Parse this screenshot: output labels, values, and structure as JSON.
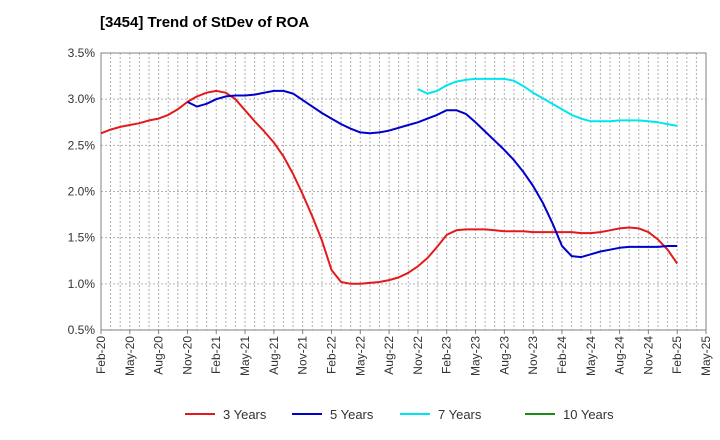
{
  "title": "[3454]  Trend of StDev of ROA",
  "chart_data": {
    "type": "line",
    "title": "[3454]  Trend of StDev of ROA",
    "xlabel": "",
    "ylabel": "",
    "x_tick_labels": [
      "Feb-20",
      "May-20",
      "Aug-20",
      "Nov-20",
      "Feb-21",
      "May-21",
      "Aug-21",
      "Nov-21",
      "Feb-22",
      "May-22",
      "Aug-22",
      "Nov-22",
      "Feb-23",
      "May-23",
      "Aug-23",
      "Nov-23",
      "Feb-24",
      "May-24",
      "Aug-24",
      "Nov-24",
      "Feb-25",
      "May-25"
    ],
    "y_tick_labels": [
      "0.5%",
      "1.0%",
      "1.5%",
      "2.0%",
      "2.5%",
      "3.0%",
      "3.5%"
    ],
    "ylim": [
      0.5,
      3.5
    ],
    "grid": true,
    "legend_position": "bottom",
    "series": [
      {
        "name": "3 Years",
        "color": "#e31a1c",
        "points": [
          [
            "Feb-20",
            2.63
          ],
          [
            "Mar-20",
            2.67
          ],
          [
            "Apr-20",
            2.7
          ],
          [
            "May-20",
            2.72
          ],
          [
            "Jun-20",
            2.74
          ],
          [
            "Jul-20",
            2.77
          ],
          [
            "Aug-20",
            2.79
          ],
          [
            "Sep-20",
            2.83
          ],
          [
            "Oct-20",
            2.89
          ],
          [
            "Nov-20",
            2.97
          ],
          [
            "Dec-20",
            3.03
          ],
          [
            "Jan-21",
            3.07
          ],
          [
            "Feb-21",
            3.09
          ],
          [
            "Mar-21",
            3.07
          ],
          [
            "Apr-21",
            3.0
          ],
          [
            "May-21",
            2.88
          ],
          [
            "Jun-21",
            2.76
          ],
          [
            "Jul-21",
            2.65
          ],
          [
            "Aug-21",
            2.53
          ],
          [
            "Sep-21",
            2.38
          ],
          [
            "Oct-21",
            2.19
          ],
          [
            "Nov-21",
            1.97
          ],
          [
            "Dec-21",
            1.73
          ],
          [
            "Jan-22",
            1.47
          ],
          [
            "Feb-22",
            1.15
          ],
          [
            "Mar-22",
            1.02
          ],
          [
            "Apr-22",
            1.0
          ],
          [
            "May-22",
            1.0
          ],
          [
            "Jun-22",
            1.01
          ],
          [
            "Jul-22",
            1.02
          ],
          [
            "Aug-22",
            1.04
          ],
          [
            "Sep-22",
            1.07
          ],
          [
            "Oct-22",
            1.12
          ],
          [
            "Nov-22",
            1.19
          ],
          [
            "Dec-22",
            1.28
          ],
          [
            "Jan-23",
            1.4
          ],
          [
            "Feb-23",
            1.53
          ],
          [
            "Mar-23",
            1.58
          ],
          [
            "Apr-23",
            1.59
          ],
          [
            "May-23",
            1.59
          ],
          [
            "Jun-23",
            1.59
          ],
          [
            "Jul-23",
            1.58
          ],
          [
            "Aug-23",
            1.57
          ],
          [
            "Sep-23",
            1.57
          ],
          [
            "Oct-23",
            1.57
          ],
          [
            "Nov-23",
            1.56
          ],
          [
            "Dec-23",
            1.56
          ],
          [
            "Jan-24",
            1.56
          ],
          [
            "Feb-24",
            1.56
          ],
          [
            "Mar-24",
            1.56
          ],
          [
            "Apr-24",
            1.55
          ],
          [
            "May-24",
            1.55
          ],
          [
            "Jun-24",
            1.56
          ],
          [
            "Jul-24",
            1.58
          ],
          [
            "Aug-24",
            1.6
          ],
          [
            "Sep-24",
            1.61
          ],
          [
            "Oct-24",
            1.6
          ],
          [
            "Nov-24",
            1.56
          ],
          [
            "Dec-24",
            1.48
          ],
          [
            "Jan-25",
            1.37
          ],
          [
            "Feb-25",
            1.22
          ]
        ]
      },
      {
        "name": "5 Years",
        "color": "#0000cc",
        "points": [
          [
            "Nov-20",
            2.97
          ],
          [
            "Dec-20",
            2.92
          ],
          [
            "Jan-21",
            2.95
          ],
          [
            "Feb-21",
            3.0
          ],
          [
            "Mar-21",
            3.03
          ],
          [
            "Apr-21",
            3.04
          ],
          [
            "May-21",
            3.04
          ],
          [
            "Jun-21",
            3.05
          ],
          [
            "Jul-21",
            3.07
          ],
          [
            "Aug-21",
            3.09
          ],
          [
            "Sep-21",
            3.09
          ],
          [
            "Oct-21",
            3.06
          ],
          [
            "Nov-21",
            2.99
          ],
          [
            "Dec-21",
            2.92
          ],
          [
            "Jan-22",
            2.85
          ],
          [
            "Feb-22",
            2.79
          ],
          [
            "Mar-22",
            2.73
          ],
          [
            "Apr-22",
            2.68
          ],
          [
            "May-22",
            2.64
          ],
          [
            "Jun-22",
            2.63
          ],
          [
            "Jul-22",
            2.64
          ],
          [
            "Aug-22",
            2.66
          ],
          [
            "Sep-22",
            2.69
          ],
          [
            "Oct-22",
            2.72
          ],
          [
            "Nov-22",
            2.75
          ],
          [
            "Dec-22",
            2.79
          ],
          [
            "Jan-23",
            2.83
          ],
          [
            "Feb-23",
            2.88
          ],
          [
            "Mar-23",
            2.88
          ],
          [
            "Apr-23",
            2.84
          ],
          [
            "May-23",
            2.75
          ],
          [
            "Jun-23",
            2.65
          ],
          [
            "Jul-23",
            2.55
          ],
          [
            "Aug-23",
            2.45
          ],
          [
            "Sep-23",
            2.34
          ],
          [
            "Oct-23",
            2.21
          ],
          [
            "Nov-23",
            2.06
          ],
          [
            "Dec-23",
            1.88
          ],
          [
            "Jan-24",
            1.66
          ],
          [
            "Feb-24",
            1.41
          ],
          [
            "Mar-24",
            1.3
          ],
          [
            "Apr-24",
            1.29
          ],
          [
            "May-24",
            1.32
          ],
          [
            "Jun-24",
            1.35
          ],
          [
            "Jul-24",
            1.37
          ],
          [
            "Aug-24",
            1.39
          ],
          [
            "Sep-24",
            1.4
          ],
          [
            "Oct-24",
            1.4
          ],
          [
            "Nov-24",
            1.4
          ],
          [
            "Dec-24",
            1.4
          ],
          [
            "Jan-25",
            1.41
          ],
          [
            "Feb-25",
            1.41
          ]
        ]
      },
      {
        "name": "7 Years",
        "color": "#00e5ee",
        "points": [
          [
            "Nov-22",
            3.11
          ],
          [
            "Dec-22",
            3.06
          ],
          [
            "Jan-23",
            3.09
          ],
          [
            "Feb-23",
            3.15
          ],
          [
            "Mar-23",
            3.19
          ],
          [
            "Apr-23",
            3.21
          ],
          [
            "May-23",
            3.22
          ],
          [
            "Jun-23",
            3.22
          ],
          [
            "Jul-23",
            3.22
          ],
          [
            "Aug-23",
            3.22
          ],
          [
            "Sep-23",
            3.2
          ],
          [
            "Oct-23",
            3.14
          ],
          [
            "Nov-23",
            3.07
          ],
          [
            "Dec-23",
            3.01
          ],
          [
            "Jan-24",
            2.95
          ],
          [
            "Feb-24",
            2.89
          ],
          [
            "Mar-24",
            2.83
          ],
          [
            "Apr-24",
            2.79
          ],
          [
            "May-24",
            2.76
          ],
          [
            "Jun-24",
            2.76
          ],
          [
            "Jul-24",
            2.76
          ],
          [
            "Aug-24",
            2.77
          ],
          [
            "Sep-24",
            2.77
          ],
          [
            "Oct-24",
            2.77
          ],
          [
            "Nov-24",
            2.76
          ],
          [
            "Dec-24",
            2.75
          ],
          [
            "Jan-25",
            2.73
          ],
          [
            "Feb-25",
            2.71
          ]
        ]
      },
      {
        "name": "10 Years",
        "color": "#1a8c1a",
        "points": []
      }
    ]
  }
}
